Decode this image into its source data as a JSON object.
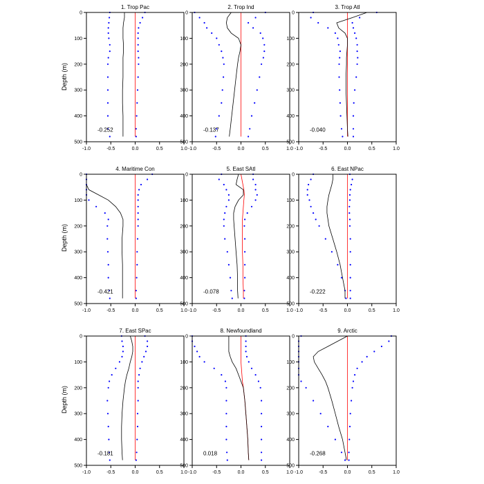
{
  "ylabel": "Depth (m)",
  "colors": {
    "mean": "#000000",
    "spread": "#0000ff",
    "zero": "#ff0000",
    "axis": "#000000"
  },
  "chart_data": [
    {
      "type": "line",
      "title": "1. Trop Pac",
      "stat": "-0.252",
      "xlim": [
        -1.0,
        1.0
      ],
      "ylim": [
        500,
        0
      ],
      "xticks": [
        "-1.0",
        "-0.5",
        "0.0",
        "0.5",
        "1.0"
      ],
      "yticks": [
        "0",
        "100",
        "200",
        "300",
        "400",
        "500"
      ],
      "depths": [
        0,
        20,
        40,
        60,
        80,
        100,
        125,
        150,
        175,
        200,
        250,
        300,
        350,
        400,
        450,
        480
      ],
      "mean": [
        -0.22,
        -0.22,
        -0.24,
        -0.25,
        -0.25,
        -0.25,
        -0.24,
        -0.24,
        -0.25,
        -0.25,
        -0.25,
        -0.26,
        -0.26,
        -0.25,
        -0.25,
        -0.25
      ],
      "lower": [
        -0.52,
        -0.53,
        -0.54,
        -0.55,
        -0.55,
        -0.54,
        -0.52,
        -0.52,
        -0.55,
        -0.56,
        -0.56,
        -0.56,
        -0.56,
        -0.56,
        -0.56,
        -0.52
      ],
      "upper": [
        0.2,
        0.15,
        0.1,
        0.07,
        0.06,
        0.06,
        0.06,
        0.06,
        0.07,
        0.07,
        0.06,
        0.05,
        0.04,
        0.03,
        0.02,
        0.02
      ],
      "zero": [
        0,
        0,
        0,
        0,
        0,
        0,
        0,
        0,
        0,
        0,
        0,
        0,
        0,
        0,
        0,
        0
      ]
    },
    {
      "type": "line",
      "title": "2. Trop Ind",
      "stat": "-0.137",
      "xlim": [
        -1.0,
        1.0
      ],
      "ylim": [
        500,
        0
      ],
      "xticks": [
        "-1.0",
        "-0.5",
        "0.0",
        "0.5",
        "1.0"
      ],
      "yticks": [
        "0",
        "100",
        "200",
        "300",
        "400",
        "500"
      ],
      "depths": [
        0,
        20,
        40,
        60,
        80,
        100,
        125,
        150,
        175,
        200,
        250,
        300,
        350,
        400,
        450,
        480
      ],
      "mean": [
        -0.2,
        -0.28,
        -0.3,
        -0.28,
        -0.2,
        -0.05,
        0.0,
        -0.02,
        -0.05,
        -0.07,
        -0.1,
        -0.13,
        -0.16,
        -0.19,
        -0.22,
        -0.24
      ],
      "lower": [
        -0.95,
        -0.85,
        -0.75,
        -0.7,
        -0.6,
        -0.5,
        -0.45,
        -0.4,
        -0.37,
        -0.35,
        -0.36,
        -0.38,
        -0.4,
        -0.45,
        -0.5,
        -0.52
      ],
      "upper": [
        0.5,
        0.3,
        0.15,
        0.25,
        0.4,
        0.45,
        0.48,
        0.48,
        0.46,
        0.42,
        0.38,
        0.33,
        0.28,
        0.22,
        0.18,
        0.15
      ],
      "zero": [
        0,
        0,
        0,
        0,
        0,
        0,
        0,
        0,
        0,
        0,
        0,
        0,
        0,
        0,
        0,
        0
      ]
    },
    {
      "type": "line",
      "title": "3. Trop Atl",
      "stat": "-0.040",
      "xlim": [
        -1.0,
        1.0
      ],
      "ylim": [
        500,
        0
      ],
      "xticks": [
        "-1.0",
        "-0.5",
        "0.0",
        "0.5",
        "1.0"
      ],
      "yticks": [
        "0",
        "100",
        "200",
        "300",
        "400",
        "500"
      ],
      "depths": [
        0,
        20,
        40,
        60,
        80,
        100,
        125,
        150,
        175,
        200,
        250,
        300,
        350,
        400,
        450,
        480
      ],
      "mean": [
        0.4,
        0.1,
        -0.22,
        -0.18,
        -0.05,
        0.0,
        0.0,
        -0.01,
        -0.02,
        -0.02,
        -0.03,
        -0.03,
        -0.02,
        -0.01,
        0.0,
        0.01
      ],
      "lower": [
        -0.7,
        -0.75,
        -0.6,
        -0.4,
        -0.25,
        -0.2,
        -0.18,
        -0.15,
        -0.16,
        -0.17,
        -0.17,
        -0.16,
        -0.15,
        -0.14,
        -0.12,
        -0.1
      ],
      "upper": [
        0.6,
        0.25,
        0.1,
        0.12,
        0.15,
        0.18,
        0.2,
        0.2,
        0.21,
        0.2,
        0.18,
        0.15,
        0.13,
        0.12,
        0.12,
        0.12
      ],
      "zero": [
        0,
        0,
        0,
        0,
        0,
        0,
        0,
        0,
        0,
        0,
        0,
        0,
        0,
        0,
        0,
        0
      ]
    },
    {
      "type": "line",
      "title": "4. Maritime Con",
      "stat": "-0.421",
      "xlim": [
        -1.0,
        1.0
      ],
      "ylim": [
        500,
        0
      ],
      "xticks": [
        "-1.0",
        "-0.5",
        "0.0",
        "0.5",
        "1.0"
      ],
      "yticks": [
        "0",
        "100",
        "200",
        "300",
        "400",
        "500"
      ],
      "depths": [
        0,
        20,
        40,
        60,
        80,
        100,
        125,
        150,
        175,
        200,
        250,
        300,
        350,
        400,
        450,
        480
      ],
      "mean": [
        -1.0,
        -1.0,
        -1.0,
        -0.95,
        -0.75,
        -0.55,
        -0.4,
        -0.3,
        -0.25,
        -0.25,
        -0.27,
        -0.27,
        -0.26,
        -0.26,
        -0.26,
        -0.26
      ],
      "lower": [
        -1.0,
        -1.0,
        -1.0,
        -1.0,
        -1.0,
        -0.95,
        -0.8,
        -0.62,
        -0.55,
        -0.57,
        -0.57,
        -0.56,
        -0.55,
        -0.55,
        -0.53,
        -0.52
      ],
      "upper": [
        0.35,
        0.25,
        0.12,
        0.08,
        0.06,
        0.06,
        0.06,
        0.06,
        0.06,
        0.06,
        0.05,
        0.04,
        0.04,
        0.03,
        0.02,
        0.02
      ],
      "zero": [
        0,
        0,
        0,
        0,
        0,
        0,
        0,
        0,
        0,
        0,
        0,
        0,
        0,
        0,
        0,
        0
      ]
    },
    {
      "type": "line",
      "title": "5. East SAtl",
      "stat": "-0.078",
      "xlim": [
        -1.0,
        1.0
      ],
      "ylim": [
        500,
        0
      ],
      "xticks": [
        "-1.0",
        "-0.5",
        "0.0",
        "0.5",
        "1.0"
      ],
      "yticks": [
        "0",
        "100",
        "200",
        "300",
        "400",
        "500"
      ],
      "depths": [
        0,
        20,
        40,
        60,
        80,
        100,
        125,
        150,
        175,
        200,
        250,
        300,
        350,
        400,
        450,
        480
      ],
      "mean": [
        -0.05,
        -0.08,
        -0.1,
        0.05,
        0.05,
        -0.05,
        -0.12,
        -0.15,
        -0.15,
        -0.14,
        -0.12,
        -0.1,
        -0.08,
        -0.07,
        -0.07,
        -0.06
      ],
      "lower": [
        -0.4,
        -0.45,
        -0.35,
        -0.3,
        -0.25,
        -0.25,
        -0.3,
        -0.33,
        -0.35,
        -0.35,
        -0.33,
        -0.28,
        -0.25,
        -0.22,
        -0.2,
        -0.18
      ],
      "upper": [
        0.25,
        0.25,
        0.3,
        0.3,
        0.33,
        0.3,
        0.22,
        0.13,
        0.08,
        0.07,
        0.08,
        0.08,
        0.08,
        0.08,
        0.07,
        0.07
      ],
      "zero": [
        0.0,
        0.02,
        0.04,
        0.06,
        0.07,
        0.06,
        0.05,
        0.04,
        0.03,
        0.03,
        0.03,
        0.03,
        0.04,
        0.04,
        0.05,
        0.05
      ]
    },
    {
      "type": "line",
      "title": "6. East NPac",
      "stat": "-0.222",
      "xlim": [
        -1.0,
        1.0
      ],
      "ylim": [
        500,
        0
      ],
      "xticks": [
        "-1.0",
        "-0.5",
        "0.0",
        "0.5",
        "1.0"
      ],
      "yticks": [
        "0",
        "100",
        "200",
        "300",
        "400",
        "500"
      ],
      "depths": [
        0,
        20,
        40,
        60,
        80,
        100,
        125,
        150,
        175,
        200,
        250,
        300,
        350,
        400,
        450,
        480
      ],
      "mean": [
        -0.3,
        -0.3,
        -0.32,
        -0.35,
        -0.38,
        -0.4,
        -0.42,
        -0.42,
        -0.4,
        -0.38,
        -0.3,
        -0.22,
        -0.15,
        -0.1,
        -0.05,
        -0.05
      ],
      "lower": [
        -0.7,
        -0.75,
        -0.8,
        -0.82,
        -0.82,
        -0.78,
        -0.75,
        -0.7,
        -0.65,
        -0.58,
        -0.45,
        -0.32,
        -0.2,
        -0.12,
        -0.05,
        -0.03
      ],
      "upper": [
        0.05,
        0.1,
        0.08,
        0.06,
        0.05,
        0.05,
        0.04,
        0.04,
        0.05,
        0.05,
        0.06,
        0.06,
        0.06,
        0.06,
        0.06,
        0.06
      ],
      "zero": [
        0,
        0,
        0,
        0,
        0,
        0,
        0,
        0,
        0,
        0,
        0,
        0,
        0,
        0,
        0,
        0
      ]
    },
    {
      "type": "line",
      "title": "7. East SPac",
      "stat": "-0.181",
      "xlim": [
        -1.0,
        1.0
      ],
      "ylim": [
        500,
        0
      ],
      "xticks": [
        "-1.0",
        "-0.5",
        "0.0",
        "0.5",
        "1.0"
      ],
      "yticks": [
        "0",
        "100",
        "200",
        "300",
        "400",
        "500"
      ],
      "depths": [
        0,
        20,
        40,
        60,
        80,
        100,
        125,
        150,
        175,
        200,
        250,
        300,
        350,
        400,
        450,
        480
      ],
      "mean": [
        -0.1,
        -0.07,
        -0.05,
        -0.05,
        -0.07,
        -0.1,
        -0.13,
        -0.17,
        -0.2,
        -0.22,
        -0.25,
        -0.27,
        -0.28,
        -0.28,
        -0.27,
        -0.26
      ],
      "lower": [
        -0.28,
        -0.27,
        -0.25,
        -0.25,
        -0.27,
        -0.32,
        -0.4,
        -0.48,
        -0.53,
        -0.55,
        -0.57,
        -0.56,
        -0.55,
        -0.54,
        -0.53,
        -0.52
      ],
      "upper": [
        0.2,
        0.25,
        0.25,
        0.22,
        0.18,
        0.14,
        0.1,
        0.08,
        0.06,
        0.06,
        0.06,
        0.05,
        0.05,
        0.04,
        0.03,
        0.02
      ],
      "zero": [
        0,
        0,
        0,
        0,
        0,
        0,
        0,
        0,
        0,
        0,
        0,
        0,
        0,
        0,
        0,
        0
      ]
    },
    {
      "type": "line",
      "title": "8. Newfoundland",
      "stat": "0.018",
      "xlim": [
        -1.0,
        1.0
      ],
      "ylim": [
        500,
        0
      ],
      "xticks": [
        "-1.0",
        "-0.5",
        "0.0",
        "0.5",
        "1.0"
      ],
      "yticks": [
        "0",
        "100",
        "200",
        "300",
        "400",
        "500"
      ],
      "depths": [
        0,
        20,
        40,
        60,
        80,
        100,
        125,
        150,
        175,
        200,
        250,
        300,
        350,
        400,
        450,
        480
      ],
      "mean": [
        -0.25,
        -0.25,
        -0.25,
        -0.25,
        -0.22,
        -0.18,
        -0.1,
        -0.05,
        0.0,
        0.05,
        0.08,
        0.1,
        0.12,
        0.14,
        0.15,
        0.16
      ],
      "lower": [
        -1.0,
        -1.0,
        -0.95,
        -0.9,
        -0.85,
        -0.75,
        -0.55,
        -0.4,
        -0.32,
        -0.3,
        -0.3,
        -0.3,
        -0.3,
        -0.3,
        -0.29,
        -0.28
      ],
      "upper": [
        0.1,
        0.1,
        0.1,
        0.1,
        0.12,
        0.16,
        0.22,
        0.3,
        0.36,
        0.4,
        0.42,
        0.42,
        0.42,
        0.42,
        0.42,
        0.42
      ],
      "zero": [
        0.0,
        0.0,
        0.0,
        0.0,
        0.0,
        0.0,
        0.01,
        0.02,
        0.03,
        0.05,
        0.08,
        0.1,
        0.12,
        0.14,
        0.15,
        0.16
      ]
    },
    {
      "type": "line",
      "title": "9. Arctic",
      "stat": "-0.268",
      "xlim": [
        -1.0,
        1.0
      ],
      "ylim": [
        500,
        0
      ],
      "xticks": [
        "-1.0",
        "-0.5",
        "0.0",
        "0.5",
        "1.0"
      ],
      "yticks": [
        "0",
        "100",
        "200",
        "300",
        "400",
        "500"
      ],
      "depths": [
        0,
        20,
        40,
        60,
        80,
        100,
        125,
        150,
        175,
        200,
        250,
        300,
        350,
        400,
        450,
        480
      ],
      "mean": [
        0.0,
        -0.2,
        -0.4,
        -0.6,
        -0.7,
        -0.68,
        -0.6,
        -0.52,
        -0.45,
        -0.4,
        -0.32,
        -0.25,
        -0.18,
        -0.1,
        -0.05,
        -0.02
      ],
      "lower": [
        -0.95,
        -1.0,
        -1.0,
        -1.0,
        -1.0,
        -1.0,
        -1.0,
        -1.0,
        -0.95,
        -0.85,
        -0.7,
        -0.55,
        -0.4,
        -0.25,
        -0.12,
        -0.05
      ],
      "upper": [
        0.9,
        0.85,
        0.7,
        0.55,
        0.4,
        0.3,
        0.2,
        0.15,
        0.12,
        0.1,
        0.08,
        0.06,
        0.05,
        0.04,
        0.03,
        0.03
      ],
      "zero": [
        0,
        0,
        0,
        0,
        0,
        0,
        0,
        0,
        0,
        0,
        0,
        0,
        0,
        0,
        0,
        0
      ]
    }
  ]
}
